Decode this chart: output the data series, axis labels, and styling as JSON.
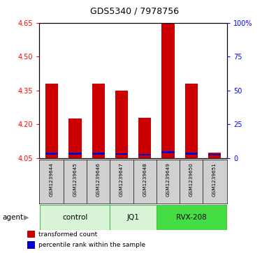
{
  "title": "GDS5340 / 7978756",
  "samples": [
    "GSM1239644",
    "GSM1239645",
    "GSM1239646",
    "GSM1239647",
    "GSM1239648",
    "GSM1239649",
    "GSM1239650",
    "GSM1239651"
  ],
  "red_values": [
    4.38,
    4.225,
    4.38,
    4.35,
    4.228,
    4.645,
    4.38,
    4.075
  ],
  "blue_values": [
    4.07,
    4.07,
    4.07,
    4.068,
    4.065,
    4.075,
    4.07,
    4.065
  ],
  "ymin": 4.05,
  "ymax": 4.65,
  "y2min": 0,
  "y2max": 100,
  "yticks": [
    4.05,
    4.2,
    4.35,
    4.5,
    4.65
  ],
  "y2ticks": [
    0,
    25,
    50,
    75,
    100
  ],
  "y2labels": [
    "0",
    "25",
    "50",
    "75",
    "100%"
  ],
  "groups": [
    {
      "label": "control",
      "indices": [
        0,
        1,
        2
      ]
    },
    {
      "label": "JQ1",
      "indices": [
        3,
        4
      ]
    },
    {
      "label": "RVX-208",
      "indices": [
        5,
        6,
        7
      ]
    }
  ],
  "group_colors": [
    "#d8f5d8",
    "#d8f5d8",
    "#44dd44"
  ],
  "bar_width": 0.55,
  "red_color": "#cc0000",
  "blue_color": "#0000cc",
  "plot_bg": "#ffffff",
  "sample_bg": "#d0d0d0",
  "agent_label": "agent",
  "legend_items": [
    {
      "color": "#cc0000",
      "label": "transformed count"
    },
    {
      "color": "#0000cc",
      "label": "percentile rank within the sample"
    }
  ]
}
